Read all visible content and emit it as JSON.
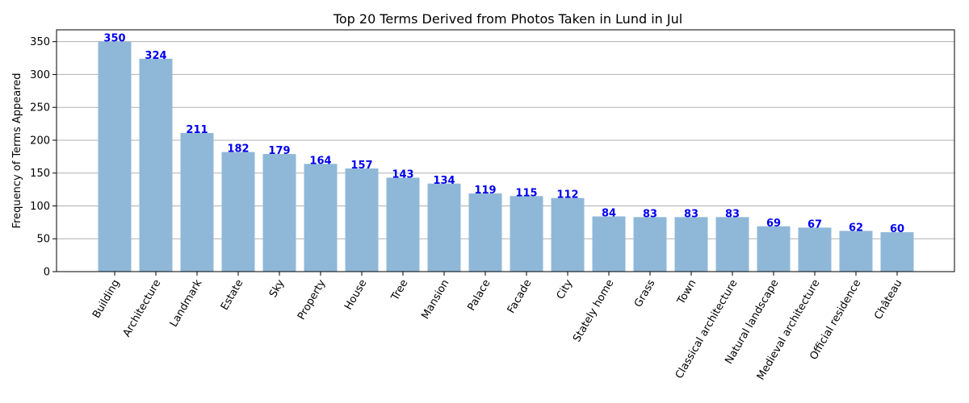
{
  "chart_data": {
    "type": "bar",
    "title": "Top 20 Terms Derived from Photos Taken in Lund in Jul",
    "xlabel": "",
    "ylabel": "Frequency of Terms Appeared",
    "ylim": [
      0,
      368
    ],
    "yticks": [
      0,
      50,
      100,
      150,
      200,
      250,
      300,
      350
    ],
    "grid": "y",
    "categories": [
      "Building",
      "Architecture",
      "Landmark",
      "Estate",
      "Sky",
      "Property",
      "House",
      "Tree",
      "Mansion",
      "Palace",
      "Facade",
      "City",
      "Stately home",
      "Grass",
      "Town",
      "Classical architecture",
      "Natural landscape",
      "Medieval architecture",
      "Official residence",
      "Château"
    ],
    "values": [
      350,
      324,
      211,
      182,
      179,
      164,
      157,
      143,
      134,
      119,
      115,
      112,
      84,
      83,
      83,
      83,
      69,
      67,
      62,
      60
    ],
    "colors": {
      "bar": "#8fb8d8",
      "label": "#0000ee",
      "grid": "#b0b0b0",
      "axis": "#000000"
    }
  }
}
